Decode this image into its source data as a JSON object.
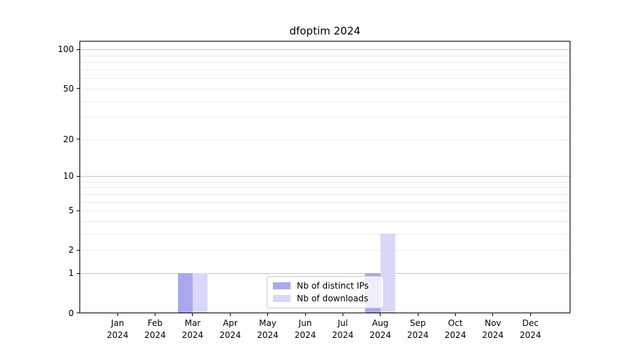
{
  "chart_data": {
    "type": "bar",
    "title": "dfoptim 2024",
    "x_months": [
      "Jan",
      "Feb",
      "Mar",
      "Apr",
      "May",
      "Jun",
      "Jul",
      "Aug",
      "Sep",
      "Oct",
      "Nov",
      "Dec"
    ],
    "x_year": "2024",
    "series": [
      {
        "name": "Nb of distinct IPs",
        "color": "#a8a8ef",
        "values": [
          0,
          0,
          1,
          0,
          0,
          0,
          0,
          1,
          0,
          0,
          0,
          0
        ]
      },
      {
        "name": "Nb of downloads",
        "color": "#d8d8f8",
        "values": [
          0,
          0,
          1,
          0,
          0,
          0,
          0,
          3,
          0,
          0,
          0,
          0
        ]
      }
    ],
    "yscale": "log1p",
    "ylim": [
      0,
      116
    ],
    "ytick_labels": [
      0,
      1,
      2,
      5,
      10,
      20,
      50,
      100
    ],
    "major_gridlines": [
      1,
      10,
      100
    ],
    "minor_gridlines": [
      2,
      3,
      4,
      5,
      6,
      7,
      8,
      9,
      20,
      30,
      40,
      50,
      60,
      70,
      80,
      90
    ],
    "grid": true,
    "legend_position": "lower center"
  }
}
